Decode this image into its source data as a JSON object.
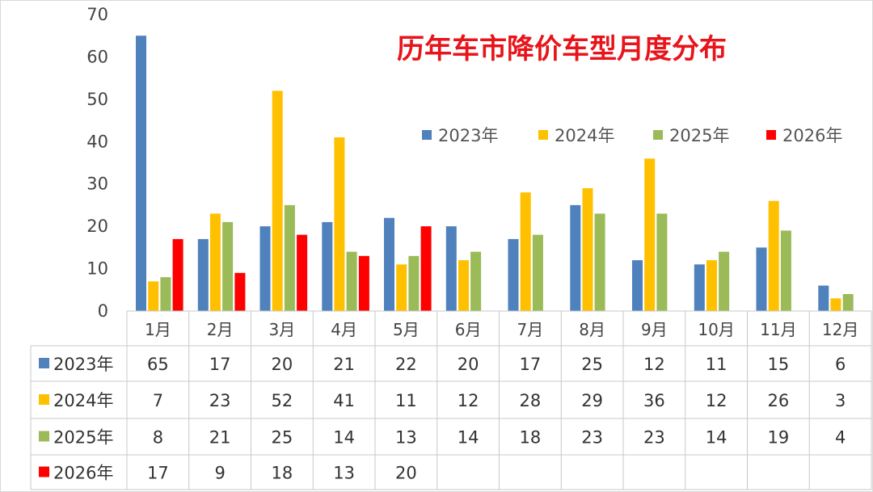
{
  "chart_data": {
    "type": "bar",
    "title": "历年车市降价车型月度分布",
    "categories": [
      "1月",
      "2月",
      "3月",
      "4月",
      "5月",
      "6月",
      "7月",
      "8月",
      "9月",
      "10月",
      "11月",
      "12月"
    ],
    "series": [
      {
        "name": "2023年",
        "color": "#4f81bd",
        "values": [
          65,
          17,
          20,
          21,
          22,
          20,
          17,
          25,
          12,
          11,
          15,
          6
        ]
      },
      {
        "name": "2024年",
        "color": "#ffc000",
        "values": [
          7,
          23,
          52,
          41,
          11,
          12,
          28,
          29,
          36,
          12,
          26,
          3
        ]
      },
      {
        "name": "2025年",
        "color": "#9bbb59",
        "values": [
          8,
          21,
          25,
          14,
          13,
          14,
          18,
          23,
          23,
          14,
          19,
          4
        ]
      },
      {
        "name": "2026年",
        "color": "#ff0000",
        "values": [
          17,
          9,
          18,
          13,
          20,
          null,
          null,
          null,
          null,
          null,
          null,
          null
        ]
      }
    ],
    "ylim": [
      0,
      70
    ],
    "yticks": [
      "0",
      "10",
      "20",
      "30",
      "40",
      "50",
      "60",
      "70"
    ],
    "grid": false,
    "legend_position": "upper-right",
    "data_table": true
  }
}
